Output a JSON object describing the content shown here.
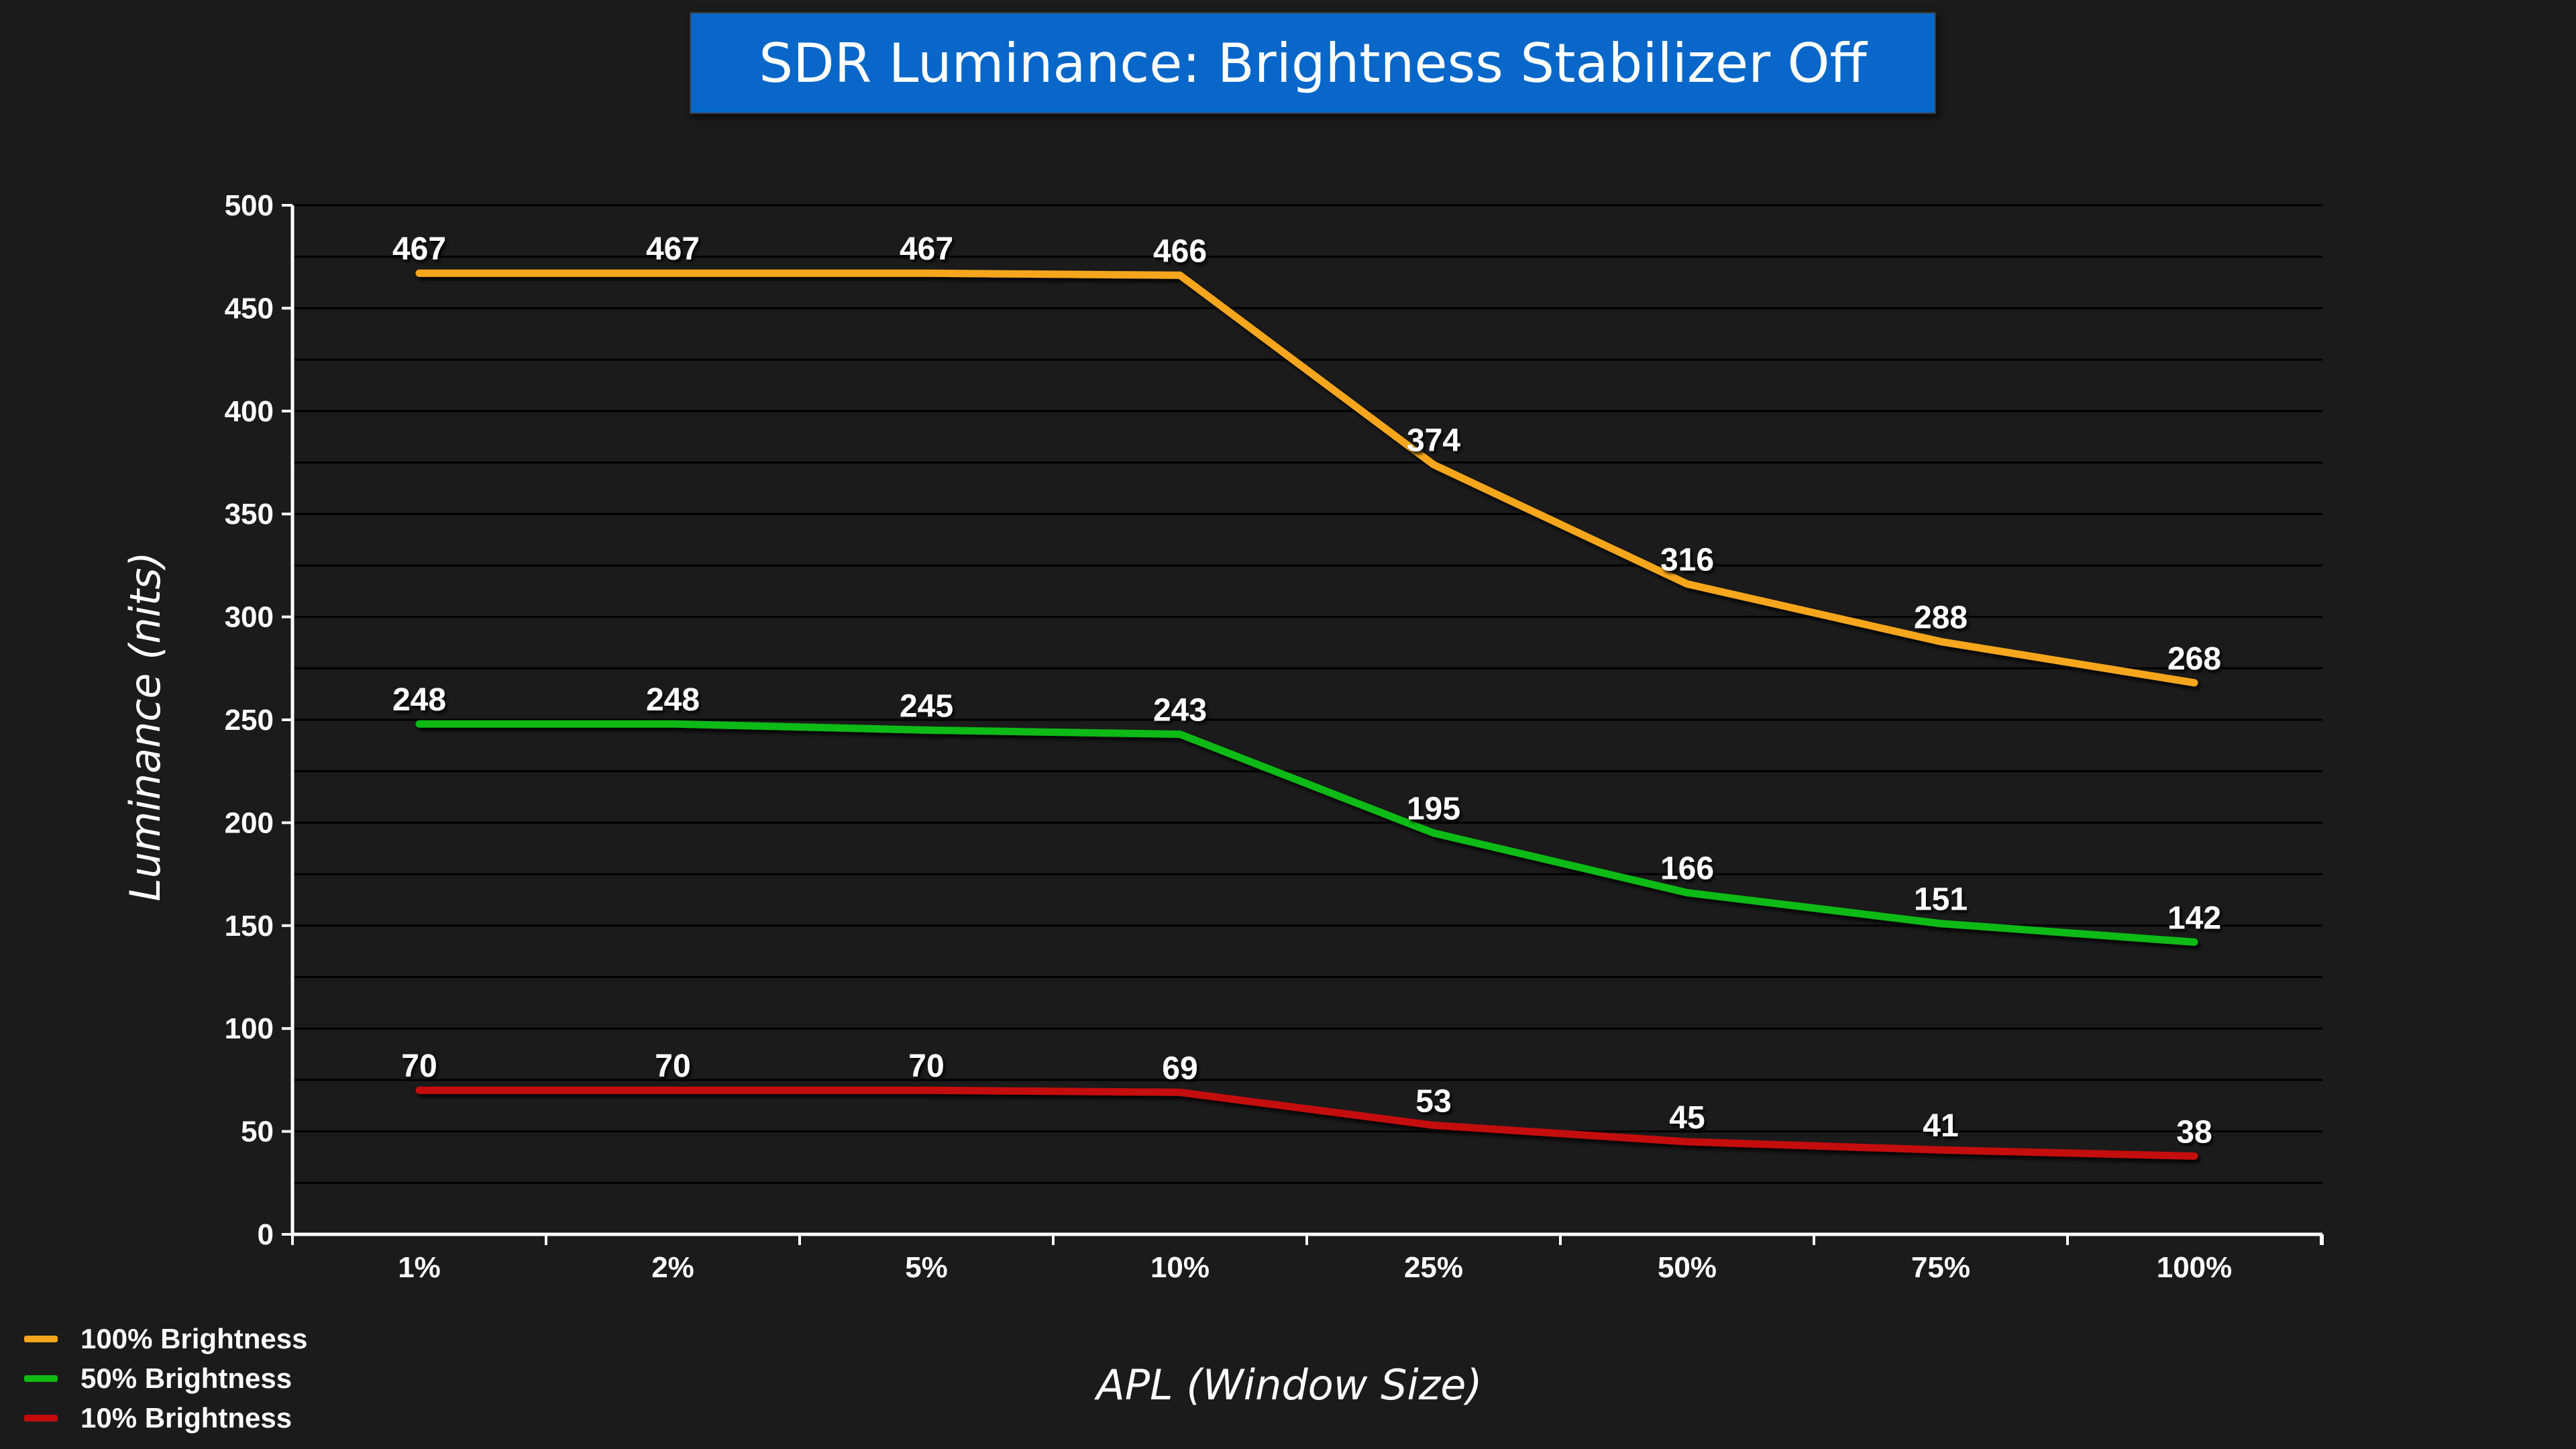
{
  "title": "SDR Luminance: Brightness Stabilizer Off",
  "colors": {
    "background": "#1b1b1b",
    "title_box": "#0867c9",
    "series_100": "#f5a61c",
    "series_50": "#0fba12",
    "series_10": "#c40b0b"
  },
  "chart_data": {
    "type": "line",
    "title": "SDR Luminance: Brightness Stabilizer Off",
    "xlabel": "APL (Window Size)",
    "ylabel": "Luminance (nits)",
    "categories": [
      "1%",
      "2%",
      "5%",
      "10%",
      "25%",
      "50%",
      "75%",
      "100%"
    ],
    "ylim": [
      0,
      500
    ],
    "yticks": [
      0,
      50,
      100,
      150,
      200,
      250,
      300,
      350,
      400,
      450,
      500
    ],
    "grid": true,
    "legend_position": "bottom-left",
    "series": [
      {
        "name": "100% Brightness",
        "color": "#f5a61c",
        "values": [
          467,
          467,
          467,
          466,
          374,
          316,
          288,
          268
        ]
      },
      {
        "name": "50% Brightness",
        "color": "#0fba12",
        "values": [
          248,
          248,
          245,
          243,
          195,
          166,
          151,
          142
        ]
      },
      {
        "name": "10% Brightness",
        "color": "#c40b0b",
        "values": [
          70,
          70,
          70,
          69,
          53,
          45,
          41,
          38
        ]
      }
    ]
  }
}
